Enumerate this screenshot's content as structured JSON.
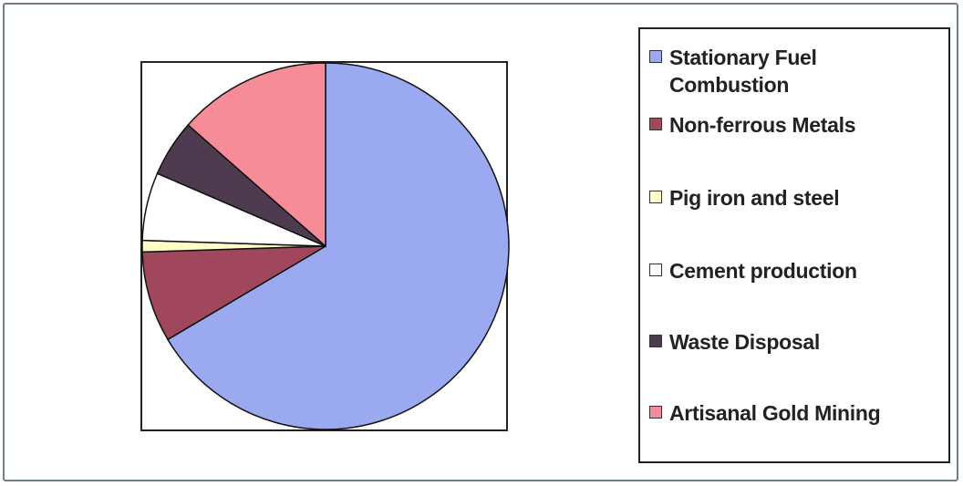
{
  "chart_data": {
    "type": "pie",
    "categories": [
      "Stationary Fuel Combustion",
      "Non-ferrous Metals",
      "Pig iron and steel",
      "Cement production",
      "Waste Disposal",
      "Artisanal Gold Mining"
    ],
    "values": [
      66.5,
      8,
      1,
      6,
      5,
      13.5
    ],
    "colors": [
      "#9aa9f0",
      "#a0475e",
      "#ffffc8",
      "#ffffff",
      "#4f3b50",
      "#f58c98"
    ],
    "legend": "right"
  }
}
